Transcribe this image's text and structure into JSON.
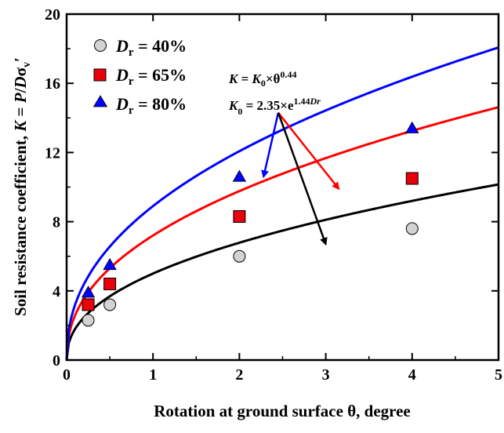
{
  "chart_data": {
    "type": "scatter",
    "xlabel": "Rotation at ground surface θ, degree",
    "ylabel": "Soil resistance coefficient, K = P/Dσv′",
    "xlim": [
      0,
      5
    ],
    "ylim": [
      0,
      20
    ],
    "x_ticks": [
      "0",
      "1",
      "2",
      "3",
      "4",
      "5"
    ],
    "y_ticks": [
      "0",
      "4",
      "8",
      "12",
      "16",
      "20"
    ],
    "grid": false,
    "legend_position": "top-left",
    "series": [
      {
        "name": "Dr = 40%",
        "marker": "circle",
        "marker_color": "#d3d3d3",
        "line_color": "#000000",
        "K0": 5.0,
        "x": [
          0.25,
          0.5,
          2,
          4
        ],
        "y": [
          2.3,
          3.2,
          6.0,
          7.6
        ]
      },
      {
        "name": "Dr = 65%",
        "marker": "square",
        "marker_color": "#e8000b",
        "line_color": "#ff0000",
        "K0": 7.2,
        "x": [
          0.25,
          0.5,
          2,
          4
        ],
        "y": [
          3.2,
          4.4,
          8.3,
          10.5
        ]
      },
      {
        "name": "Dr = 80%",
        "marker": "triangle",
        "marker_color": "#0000ff",
        "line_color": "#0000ff",
        "K0": 8.9,
        "x": [
          0.25,
          0.5,
          2,
          4
        ],
        "y": [
          3.9,
          5.5,
          10.6,
          13.4
        ]
      }
    ],
    "fit_exponent": 0.44,
    "annotations": {
      "eq1": "K = K0×θ0.44",
      "eq2": "K0 = 2.35×e1.44Dr",
      "arrows": [
        {
          "color": "#0000ff",
          "from": [
            2.45,
            14.3
          ],
          "to": [
            2.28,
            10.6
          ]
        },
        {
          "color": "#ff0000",
          "from": [
            2.45,
            14.3
          ],
          "to": [
            3.15,
            9.9
          ]
        },
        {
          "color": "#000000",
          "from": [
            2.45,
            14.3
          ],
          "to": [
            3.0,
            6.7
          ]
        }
      ]
    }
  }
}
